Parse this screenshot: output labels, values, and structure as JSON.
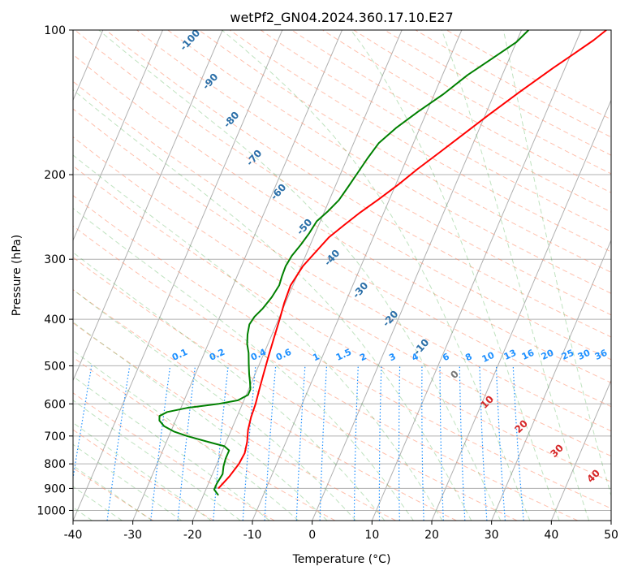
{
  "chart_data": {
    "type": "line",
    "title": "wetPf2_GN04.2024.360.17.10.E27",
    "xlabel": "Temperature (°C)",
    "ylabel": "Pressure (hPa)",
    "xlim": [
      -40,
      50
    ],
    "ylim": [
      1050,
      100
    ],
    "y_scale": "log",
    "grid": true,
    "x_ticks": [
      -40,
      -30,
      -20,
      -10,
      0,
      10,
      20,
      30,
      40,
      50
    ],
    "y_ticks": [
      1000,
      900,
      800,
      700,
      600,
      500,
      400,
      300,
      200,
      100
    ],
    "dry_adiabat_labels": [
      -100,
      -90,
      -80,
      -70,
      -60,
      -50,
      -40,
      -30,
      -20,
      -10
    ],
    "mixing_ratio_labels": [
      "0.1",
      "0.2",
      "0.4",
      "0.6",
      "1",
      "1.5",
      "2",
      "3",
      "4",
      "6",
      "8",
      "10",
      "13",
      "16",
      "20",
      "25",
      "30",
      "36"
    ],
    "moist_adiabat_labels": [
      "0",
      "10",
      "20",
      "30",
      "40"
    ],
    "series": [
      {
        "color": "#ff0000",
        "points": [
          [
            -18.0,
            900
          ],
          [
            -17.0,
            850
          ],
          [
            -16.3,
            800
          ],
          [
            -16.1,
            760
          ],
          [
            -16.5,
            720
          ],
          [
            -17.2,
            680
          ],
          [
            -17.6,
            640
          ],
          [
            -17.8,
            600
          ],
          [
            -18.2,
            560
          ],
          [
            -18.6,
            520
          ],
          [
            -19.0,
            480
          ],
          [
            -19.4,
            440
          ],
          [
            -19.8,
            400
          ],
          [
            -20.2,
            370
          ],
          [
            -20.4,
            340
          ],
          [
            -19.7,
            310
          ],
          [
            -18.6,
            290
          ],
          [
            -17.4,
            270
          ],
          [
            -15.8,
            255
          ],
          [
            -14.0,
            240
          ],
          [
            -11.8,
            225
          ],
          [
            -9.6,
            210
          ],
          [
            -7.5,
            195
          ],
          [
            -5.0,
            180
          ],
          [
            -2.3,
            165
          ],
          [
            0.6,
            150
          ],
          [
            4.0,
            135
          ],
          [
            8.0,
            120
          ],
          [
            10.5,
            112
          ],
          [
            12.8,
            105
          ],
          [
            14.2,
            100
          ]
        ]
      },
      {
        "color": "#008000",
        "points": [
          [
            -17.5,
            930
          ],
          [
            -18.6,
            905
          ],
          [
            -18.6,
            880
          ],
          [
            -18.3,
            840
          ],
          [
            -18.7,
            810
          ],
          [
            -18.9,
            780
          ],
          [
            -18.9,
            750
          ],
          [
            -20.0,
            735
          ],
          [
            -23.0,
            720
          ],
          [
            -27.0,
            700
          ],
          [
            -29.5,
            685
          ],
          [
            -31.5,
            668
          ],
          [
            -32.7,
            650
          ],
          [
            -33.0,
            636
          ],
          [
            -32.0,
            624
          ],
          [
            -29.0,
            612
          ],
          [
            -24.0,
            600
          ],
          [
            -21.0,
            590
          ],
          [
            -19.7,
            575
          ],
          [
            -19.7,
            560
          ],
          [
            -20.3,
            540
          ],
          [
            -21.0,
            520
          ],
          [
            -21.8,
            495
          ],
          [
            -22.6,
            470
          ],
          [
            -23.5,
            450
          ],
          [
            -24.1,
            430
          ],
          [
            -24.5,
            410
          ],
          [
            -24.2,
            395
          ],
          [
            -23.4,
            380
          ],
          [
            -22.7,
            360
          ],
          [
            -22.3,
            340
          ],
          [
            -22.5,
            325
          ],
          [
            -22.6,
            310
          ],
          [
            -22.3,
            295
          ],
          [
            -21.6,
            280
          ],
          [
            -21.0,
            265
          ],
          [
            -20.6,
            250
          ],
          [
            -19.4,
            238
          ],
          [
            -18.4,
            226
          ],
          [
            -17.8,
            212
          ],
          [
            -17.2,
            198
          ],
          [
            -16.6,
            185
          ],
          [
            -15.8,
            172
          ],
          [
            -14.0,
            160
          ],
          [
            -11.5,
            148
          ],
          [
            -8.5,
            136
          ],
          [
            -5.8,
            124
          ],
          [
            -3.0,
            115
          ],
          [
            0.0,
            106
          ],
          [
            1.2,
            100
          ]
        ]
      }
    ]
  }
}
